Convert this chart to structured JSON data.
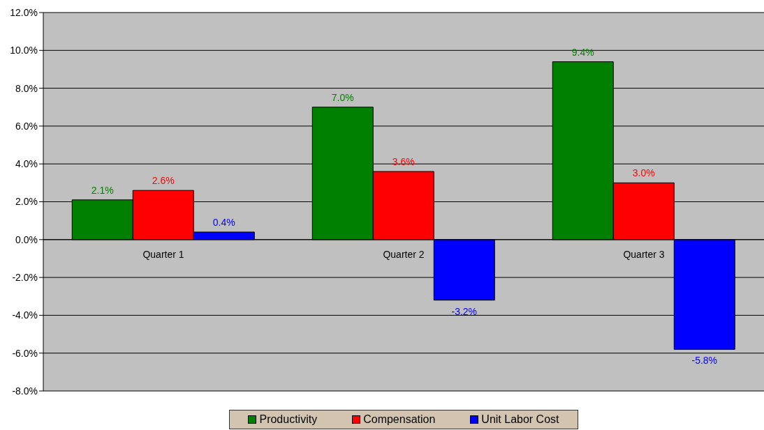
{
  "chart_data": {
    "type": "bar",
    "categories": [
      "Quarter 1",
      "Quarter 2",
      "Quarter 3"
    ],
    "series": [
      {
        "name": "Productivity",
        "color": "#008000",
        "values": [
          2.1,
          7.0,
          9.4
        ]
      },
      {
        "name": "Compensation",
        "color": "#ff0000",
        "values": [
          2.6,
          3.6,
          3.0
        ]
      },
      {
        "name": "Unit Labor Cost",
        "color": "#0000ff",
        "values": [
          0.4,
          -3.2,
          -5.8
        ]
      }
    ],
    "ylim": [
      -8,
      12
    ],
    "yticks": [
      {
        "value": -8,
        "label": "-8.0%"
      },
      {
        "value": -6,
        "label": "-6.0%"
      },
      {
        "value": -4,
        "label": "-4.0%"
      },
      {
        "value": -2,
        "label": "-2.0%"
      },
      {
        "value": 0,
        "label": "0.0%"
      },
      {
        "value": 2,
        "label": "2.0%"
      },
      {
        "value": 4,
        "label": "4.0%"
      },
      {
        "value": 6,
        "label": "6.0%"
      },
      {
        "value": 8,
        "label": "8.0%"
      },
      {
        "value": 10,
        "label": "10.0%"
      },
      {
        "value": 12,
        "label": "12.0%"
      }
    ],
    "value_labels": [
      [
        "2.1%",
        "7.0%",
        "9.4%"
      ],
      [
        "2.6%",
        "3.6%",
        "3.0%"
      ],
      [
        "0.4%",
        "-3.2%",
        "-5.8%"
      ]
    ],
    "grid": "y",
    "legend": "bottom"
  }
}
